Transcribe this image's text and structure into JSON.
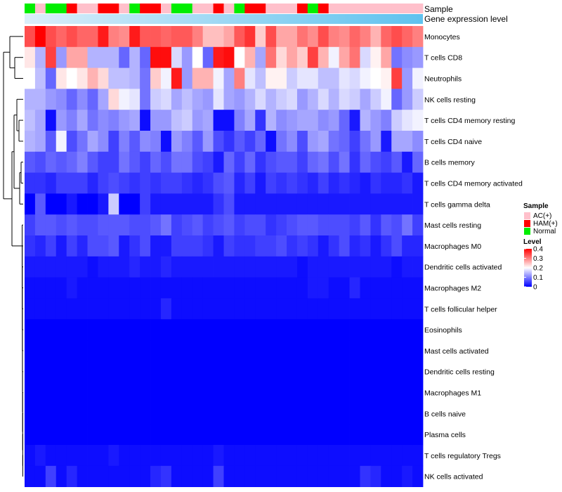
{
  "chart_data": {
    "type": "heatmap",
    "title": "",
    "annotation_labels": [
      "Sample",
      "Gene expression level"
    ],
    "sample_groups": [
      "N",
      "AC",
      "N",
      "N",
      "H",
      "AC",
      "AC",
      "H",
      "H",
      "AC",
      "N",
      "H",
      "H",
      "AC",
      "N",
      "N",
      "AC",
      "AC",
      "H",
      "AC",
      "N",
      "H",
      "H",
      "AC",
      "AC",
      "AC",
      "H",
      "N",
      "H",
      "AC",
      "AC",
      "AC",
      "AC",
      "AC",
      "AC",
      "AC",
      "AC",
      "AC"
    ],
    "sample_legend": {
      "title": "Sample",
      "items": [
        {
          "key": "AC",
          "label": "AC(+)",
          "color": "#ffc0cb"
        },
        {
          "key": "H",
          "label": "HAM(+)",
          "color": "#ff0000"
        },
        {
          "key": "N",
          "label": "Normal",
          "color": "#00ee00"
        }
      ]
    },
    "level_legend": {
      "title": "Level",
      "ticks": [
        "0.4",
        "0.3",
        "0.2",
        "0.1",
        "0"
      ],
      "range": [
        0,
        0.4
      ],
      "colors": [
        "#0000ff",
        "#ffffff",
        "#ff0000"
      ]
    },
    "rows": [
      "Monocytes",
      "T cells CD8",
      "Neutrophils",
      "NK cells resting",
      "T cells CD4 memory resting",
      "T cells CD4 naive",
      "B cells memory",
      "T cells CD4 memory activated",
      "T cells gamma delta",
      "Mast cells resting",
      "Macrophages M0",
      "Dendritic cells activated",
      "Macrophages M2",
      "T cells follicular helper",
      "Eosinophils",
      "Mast cells activated",
      "Dendritic cells resting",
      "Macrophages M1",
      "B cells naive",
      "Plasma cells",
      "T cells regulatory  Tregs",
      "NK cells activated"
    ],
    "values": [
      [
        0.34,
        0.4,
        0.34,
        0.32,
        0.34,
        0.32,
        0.32,
        0.38,
        0.3,
        0.29,
        0.38,
        0.33,
        0.33,
        0.32,
        0.33,
        0.33,
        0.3,
        0.25,
        0.25,
        0.27,
        0.33,
        0.36,
        0.24,
        0.34,
        0.27,
        0.27,
        0.31,
        0.29,
        0.34,
        0.3,
        0.29,
        0.32,
        0.3,
        0.26,
        0.32,
        0.34,
        0.32,
        0.3
      ],
      [
        0.22,
        0.14,
        0.35,
        0.12,
        0.27,
        0.27,
        0.14,
        0.14,
        0.14,
        0.08,
        0.14,
        0.08,
        0.39,
        0.39,
        0.17,
        0.12,
        0.2,
        0.08,
        0.38,
        0.39,
        0.2,
        0.26,
        0.13,
        0.31,
        0.23,
        0.27,
        0.24,
        0.35,
        0.26,
        0.19,
        0.27,
        0.31,
        0.17,
        0.21,
        0.27,
        0.09,
        0.11,
        0.12
      ],
      [
        0.2,
        0.15,
        0.08,
        0.22,
        0.2,
        0.22,
        0.26,
        0.23,
        0.15,
        0.15,
        0.14,
        0.09,
        0.24,
        0.19,
        0.38,
        0.12,
        0.26,
        0.26,
        0.19,
        0.13,
        0.3,
        0.18,
        0.15,
        0.21,
        0.21,
        0.16,
        0.18,
        0.18,
        0.15,
        0.15,
        0.18,
        0.17,
        0.19,
        0.2,
        0.21,
        0.35,
        0.12,
        0.19
      ],
      [
        0.14,
        0.14,
        0.12,
        0.11,
        0.08,
        0.11,
        0.08,
        0.13,
        0.23,
        0.19,
        0.18,
        0.09,
        0.16,
        0.17,
        0.13,
        0.15,
        0.13,
        0.12,
        0.18,
        0.13,
        0.12,
        0.14,
        0.17,
        0.14,
        0.16,
        0.17,
        0.12,
        0.14,
        0.17,
        0.14,
        0.17,
        0.16,
        0.13,
        0.16,
        0.19,
        0.08,
        0.12,
        0.16
      ],
      [
        0.15,
        0.13,
        0.01,
        0.12,
        0.1,
        0.13,
        0.09,
        0.11,
        0.1,
        0.12,
        0.13,
        0.01,
        0.12,
        0.12,
        0.15,
        0.16,
        0.12,
        0.13,
        0.01,
        0.01,
        0.1,
        0.13,
        0.04,
        0.14,
        0.11,
        0.12,
        0.13,
        0.13,
        0.11,
        0.12,
        0.08,
        0.02,
        0.14,
        0.12,
        0.1,
        0.16,
        0.18,
        0.19
      ],
      [
        0.14,
        0.13,
        0.07,
        0.19,
        0.06,
        0.09,
        0.13,
        0.11,
        0.05,
        0.1,
        0.07,
        0.11,
        0.1,
        0.01,
        0.12,
        0.1,
        0.07,
        0.12,
        0.06,
        0.04,
        0.07,
        0.05,
        0.08,
        0.01,
        0.09,
        0.11,
        0.06,
        0.12,
        0.13,
        0.09,
        0.08,
        0.05,
        0.09,
        0.12,
        0.02,
        0.13,
        0.13,
        0.11
      ],
      [
        0.07,
        0.06,
        0.08,
        0.07,
        0.08,
        0.1,
        0.07,
        0.05,
        0.05,
        0.09,
        0.07,
        0.05,
        0.08,
        0.06,
        0.09,
        0.09,
        0.06,
        0.05,
        0.02,
        0.08,
        0.05,
        0.08,
        0.04,
        0.06,
        0.07,
        0.07,
        0.05,
        0.08,
        0.09,
        0.06,
        0.09,
        0.04,
        0.08,
        0.06,
        0.05,
        0.07,
        0.02,
        0.08
      ],
      [
        0.04,
        0.04,
        0.03,
        0.05,
        0.05,
        0.05,
        0.03,
        0.05,
        0.06,
        0.05,
        0.04,
        0.05,
        0.04,
        0.05,
        0.05,
        0.04,
        0.03,
        0.04,
        0.06,
        0.07,
        0.03,
        0.05,
        0.02,
        0.05,
        0.04,
        0.05,
        0.04,
        0.03,
        0.05,
        0.03,
        0.04,
        0.03,
        0.02,
        0.04,
        0.03,
        0.03,
        0.04,
        0.02
      ],
      [
        0.0,
        0.07,
        0.0,
        0.0,
        0.02,
        0.0,
        0.0,
        0.02,
        0.16,
        0.0,
        0.0,
        0.05,
        0.02,
        0.02,
        0.02,
        0.02,
        0.02,
        0.02,
        0.04,
        0.06,
        0.02,
        0.02,
        0.02,
        0.02,
        0.02,
        0.02,
        0.02,
        0.02,
        0.02,
        0.02,
        0.02,
        0.02,
        0.02,
        0.02,
        0.02,
        0.02,
        0.02,
        0.02
      ],
      [
        0.05,
        0.07,
        0.07,
        0.06,
        0.07,
        0.06,
        0.06,
        0.07,
        0.07,
        0.07,
        0.06,
        0.06,
        0.07,
        0.09,
        0.05,
        0.06,
        0.07,
        0.05,
        0.06,
        0.07,
        0.05,
        0.06,
        0.06,
        0.04,
        0.05,
        0.06,
        0.07,
        0.07,
        0.06,
        0.06,
        0.06,
        0.05,
        0.07,
        0.04,
        0.07,
        0.06,
        0.09,
        0.05
      ],
      [
        0.04,
        0.03,
        0.05,
        0.02,
        0.05,
        0.03,
        0.06,
        0.06,
        0.07,
        0.02,
        0.04,
        0.06,
        0.02,
        0.02,
        0.05,
        0.05,
        0.05,
        0.04,
        0.02,
        0.05,
        0.04,
        0.04,
        0.05,
        0.05,
        0.06,
        0.04,
        0.05,
        0.04,
        0.02,
        0.04,
        0.06,
        0.03,
        0.04,
        0.02,
        0.04,
        0.06,
        0.03,
        0.03
      ],
      [
        0.02,
        0.02,
        0.02,
        0.02,
        0.02,
        0.02,
        0.01,
        0.02,
        0.02,
        0.02,
        0.03,
        0.02,
        0.02,
        0.03,
        0.02,
        0.02,
        0.02,
        0.02,
        0.02,
        0.02,
        0.02,
        0.02,
        0.02,
        0.02,
        0.02,
        0.02,
        0.01,
        0.02,
        0.02,
        0.02,
        0.02,
        0.02,
        0.02,
        0.02,
        0.02,
        0.01,
        0.02,
        0.02
      ],
      [
        0.01,
        0.01,
        0.01,
        0.01,
        0.02,
        0.01,
        0.01,
        0.01,
        0.01,
        0.01,
        0.01,
        0.01,
        0.01,
        0.01,
        0.01,
        0.01,
        0.01,
        0.01,
        0.01,
        0.01,
        0.01,
        0.01,
        0.01,
        0.01,
        0.01,
        0.01,
        0.01,
        0.02,
        0.02,
        0.01,
        0.01,
        0.03,
        0.01,
        0.01,
        0.01,
        0.01,
        0.01,
        0.01
      ],
      [
        0.01,
        0.01,
        0.01,
        0.01,
        0.01,
        0.01,
        0.01,
        0.01,
        0.01,
        0.01,
        0.01,
        0.01,
        0.01,
        0.03,
        0.01,
        0.01,
        0.01,
        0.01,
        0.01,
        0.01,
        0.01,
        0.01,
        0.01,
        0.01,
        0.01,
        0.01,
        0.01,
        0.01,
        0.01,
        0.01,
        0.01,
        0.01,
        0.01,
        0.01,
        0.01,
        0.01,
        0.01,
        0.01
      ],
      [
        0.0,
        0.0,
        0.0,
        0.0,
        0.0,
        0.0,
        0.0,
        0.0,
        0.0,
        0.0,
        0.0,
        0.0,
        0.0,
        0.0,
        0.0,
        0.0,
        0.0,
        0.0,
        0.0,
        0.0,
        0.0,
        0.0,
        0.0,
        0.0,
        0.0,
        0.0,
        0.0,
        0.0,
        0.0,
        0.0,
        0.0,
        0.0,
        0.0,
        0.0,
        0.0,
        0.0,
        0.0,
        0.0
      ],
      [
        0.0,
        0.0,
        0.0,
        0.0,
        0.0,
        0.0,
        0.0,
        0.0,
        0.0,
        0.0,
        0.0,
        0.0,
        0.0,
        0.0,
        0.0,
        0.0,
        0.0,
        0.0,
        0.0,
        0.0,
        0.0,
        0.0,
        0.0,
        0.0,
        0.0,
        0.0,
        0.0,
        0.0,
        0.0,
        0.0,
        0.0,
        0.0,
        0.0,
        0.0,
        0.0,
        0.0,
        0.0,
        0.0
      ],
      [
        0.0,
        0.0,
        0.0,
        0.0,
        0.0,
        0.0,
        0.0,
        0.0,
        0.0,
        0.0,
        0.0,
        0.0,
        0.0,
        0.0,
        0.0,
        0.0,
        0.0,
        0.0,
        0.0,
        0.0,
        0.0,
        0.0,
        0.0,
        0.0,
        0.0,
        0.0,
        0.0,
        0.0,
        0.0,
        0.0,
        0.0,
        0.0,
        0.0,
        0.0,
        0.0,
        0.0,
        0.0,
        0.0
      ],
      [
        0.0,
        0.0,
        0.0,
        0.0,
        0.0,
        0.0,
        0.0,
        0.0,
        0.0,
        0.0,
        0.0,
        0.0,
        0.0,
        0.0,
        0.0,
        0.0,
        0.0,
        0.0,
        0.0,
        0.0,
        0.0,
        0.0,
        0.0,
        0.0,
        0.0,
        0.0,
        0.0,
        0.0,
        0.0,
        0.0,
        0.0,
        0.0,
        0.0,
        0.0,
        0.0,
        0.0,
        0.0,
        0.0
      ],
      [
        0.0,
        0.0,
        0.0,
        0.0,
        0.0,
        0.0,
        0.0,
        0.0,
        0.0,
        0.0,
        0.0,
        0.0,
        0.0,
        0.0,
        0.0,
        0.0,
        0.0,
        0.0,
        0.0,
        0.0,
        0.0,
        0.0,
        0.0,
        0.0,
        0.0,
        0.0,
        0.0,
        0.0,
        0.0,
        0.0,
        0.0,
        0.0,
        0.0,
        0.0,
        0.0,
        0.0,
        0.0,
        0.0
      ],
      [
        0.0,
        0.0,
        0.0,
        0.0,
        0.0,
        0.0,
        0.0,
        0.0,
        0.0,
        0.0,
        0.0,
        0.0,
        0.0,
        0.0,
        0.0,
        0.0,
        0.0,
        0.0,
        0.0,
        0.0,
        0.0,
        0.0,
        0.0,
        0.0,
        0.0,
        0.0,
        0.0,
        0.0,
        0.0,
        0.0,
        0.0,
        0.0,
        0.0,
        0.0,
        0.0,
        0.0,
        0.0,
        0.0
      ],
      [
        0.01,
        0.02,
        0.01,
        0.01,
        0.01,
        0.01,
        0.01,
        0.01,
        0.02,
        0.01,
        0.01,
        0.01,
        0.01,
        0.01,
        0.01,
        0.01,
        0.01,
        0.01,
        0.02,
        0.01,
        0.01,
        0.01,
        0.01,
        0.01,
        0.01,
        0.01,
        0.01,
        0.01,
        0.01,
        0.01,
        0.01,
        0.01,
        0.01,
        0.01,
        0.01,
        0.01,
        0.01,
        0.01
      ],
      [
        0.01,
        0.01,
        0.05,
        0.01,
        0.03,
        0.01,
        0.01,
        0.01,
        0.01,
        0.01,
        0.01,
        0.01,
        0.03,
        0.04,
        0.01,
        0.01,
        0.01,
        0.01,
        0.05,
        0.01,
        0.01,
        0.01,
        0.01,
        0.01,
        0.01,
        0.01,
        0.01,
        0.01,
        0.01,
        0.01,
        0.01,
        0.01,
        0.04,
        0.03,
        0.01,
        0.01,
        0.02,
        0.01
      ]
    ],
    "dendrogram": {
      "linkage_order_note": "row clustering tree on the left",
      "merges": [
        {
          "a": "Monocytes",
          "b": "grp_cd8_neu",
          "height": 0.9
        },
        {
          "a": "T cells CD8",
          "b": "Neutrophils",
          "height": 0.55
        }
      ]
    }
  }
}
